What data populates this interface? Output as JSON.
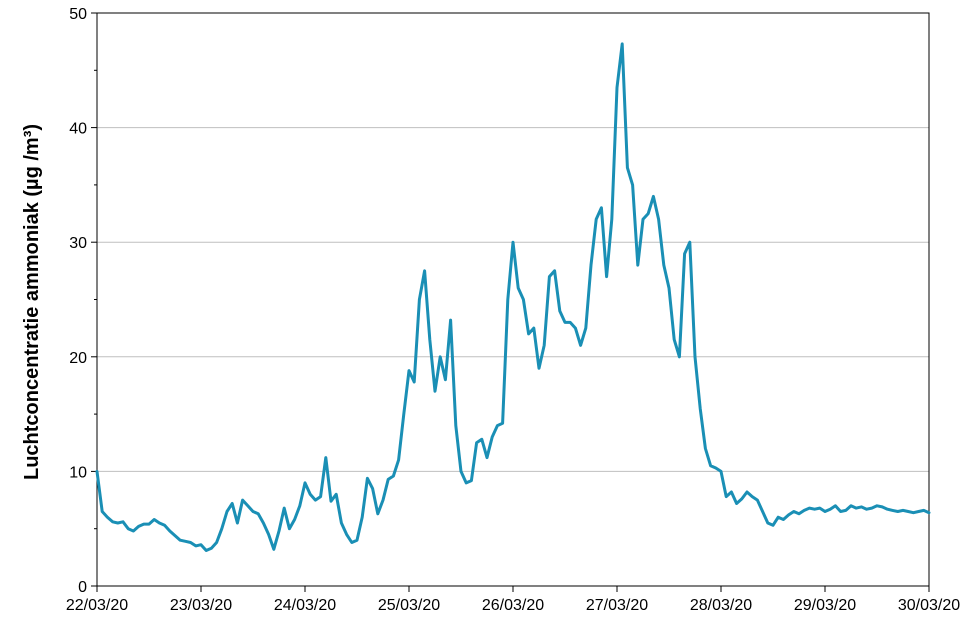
{
  "chart_data": {
    "type": "line",
    "title": "",
    "xlabel": "",
    "ylabel": "Luchtconcentratie ammoniak (µg /m³)",
    "ylim": [
      0,
      50
    ],
    "y_ticks": [
      "0",
      "10",
      "20",
      "30",
      "40",
      "50"
    ],
    "x_tick_labels": [
      "22/03/20",
      "23/03/20",
      "24/03/20",
      "25/03/20",
      "26/03/20",
      "27/03/20",
      "28/03/20",
      "29/03/20",
      "30/03/20"
    ],
    "x_range_days": [
      0,
      8
    ],
    "grid": "horizontal",
    "legend": "none",
    "series_color": "#1a8fb5",
    "series": [
      {
        "x": [
          0,
          0.05,
          0.1,
          0.15,
          0.2,
          0.25,
          0.3,
          0.35,
          0.4,
          0.45,
          0.5,
          0.55,
          0.6,
          0.65,
          0.7,
          0.75,
          0.8,
          0.85,
          0.9,
          0.95,
          1.0,
          1.05,
          1.1,
          1.15,
          1.2,
          1.25,
          1.3,
          1.35,
          1.4,
          1.45,
          1.5,
          1.55,
          1.6,
          1.65,
          1.7,
          1.75,
          1.8,
          1.85,
          1.9,
          1.95,
          2.0,
          2.05,
          2.1,
          2.15,
          2.2,
          2.25,
          2.3,
          2.35,
          2.4,
          2.45,
          2.5,
          2.55,
          2.6,
          2.65,
          2.7,
          2.75,
          2.8,
          2.85,
          2.9,
          2.95,
          3.0,
          3.05,
          3.1,
          3.15,
          3.2,
          3.25,
          3.3,
          3.35,
          3.4,
          3.45,
          3.5,
          3.55,
          3.6,
          3.65,
          3.7,
          3.75,
          3.8,
          3.85,
          3.9,
          3.95,
          4.0,
          4.05,
          4.1,
          4.15,
          4.2,
          4.25,
          4.3,
          4.35,
          4.4,
          4.45,
          4.5,
          4.55,
          4.6,
          4.65,
          4.7,
          4.75,
          4.8,
          4.85,
          4.9,
          4.95,
          5.0,
          5.05,
          5.1,
          5.15,
          5.2,
          5.25,
          5.3,
          5.35,
          5.4,
          5.45,
          5.5,
          5.55,
          5.6,
          5.65,
          5.7,
          5.75,
          5.8,
          5.85,
          5.9,
          5.95,
          6.0,
          6.05,
          6.1,
          6.15,
          6.2,
          6.25,
          6.3,
          6.35,
          6.4,
          6.45,
          6.5,
          6.55,
          6.6,
          6.65,
          6.7,
          6.75,
          6.8,
          6.85,
          6.9,
          6.95,
          7.0,
          7.05,
          7.1,
          7.15,
          7.2,
          7.25,
          7.3,
          7.35,
          7.4,
          7.45,
          7.5,
          7.55,
          7.6,
          7.65,
          7.7,
          7.75,
          7.8,
          7.85,
          7.9,
          7.95,
          8.0
        ],
        "values": [
          10.0,
          6.5,
          6.0,
          5.6,
          5.5,
          5.6,
          5.0,
          4.8,
          5.2,
          5.4,
          5.4,
          5.8,
          5.5,
          5.3,
          4.8,
          4.4,
          4.0,
          3.9,
          3.8,
          3.5,
          3.6,
          3.1,
          3.3,
          3.8,
          5.0,
          6.5,
          7.2,
          5.5,
          7.5,
          7.0,
          6.5,
          6.3,
          5.5,
          4.5,
          3.2,
          4.8,
          6.8,
          5.0,
          5.8,
          7.0,
          9.0,
          8.0,
          7.5,
          7.8,
          11.2,
          7.4,
          8.0,
          5.5,
          4.5,
          3.8,
          4.0,
          6.0,
          9.4,
          8.5,
          6.3,
          7.5,
          9.3,
          9.6,
          11.0,
          15.0,
          18.8,
          17.8,
          25.0,
          27.5,
          21.5,
          17.0,
          20.0,
          18.0,
          23.2,
          14.0,
          10.0,
          9.0,
          9.2,
          12.5,
          12.8,
          11.2,
          13.0,
          14.0,
          14.2,
          25.0,
          30.0,
          26.0,
          25.0,
          22.0,
          22.5,
          19.0,
          21.0,
          27.0,
          27.5,
          24.0,
          23.0,
          23.0,
          22.5,
          21.0,
          22.5,
          28.0,
          32.0,
          33.0,
          27.0,
          32.0,
          43.5,
          47.3,
          36.5,
          35.0,
          28.0,
          32.0,
          32.5,
          34.0,
          32.0,
          28.0,
          26.0,
          21.5,
          20.0,
          29.0,
          30.0,
          20.0,
          15.5,
          12.0,
          10.5,
          10.3,
          10.0,
          7.8,
          8.2,
          7.2,
          7.6,
          8.2,
          7.8,
          7.5,
          6.5,
          5.5,
          5.3,
          6.0,
          5.8,
          6.2,
          6.5,
          6.3,
          6.6,
          6.8,
          6.7,
          6.8,
          6.5,
          6.7,
          7.0,
          6.5,
          6.6,
          7.0,
          6.8,
          6.9,
          6.7,
          6.8,
          7.0,
          6.9,
          6.7,
          6.6,
          6.5,
          6.6,
          6.5,
          6.4,
          6.5,
          6.6,
          6.4
        ]
      }
    ]
  }
}
